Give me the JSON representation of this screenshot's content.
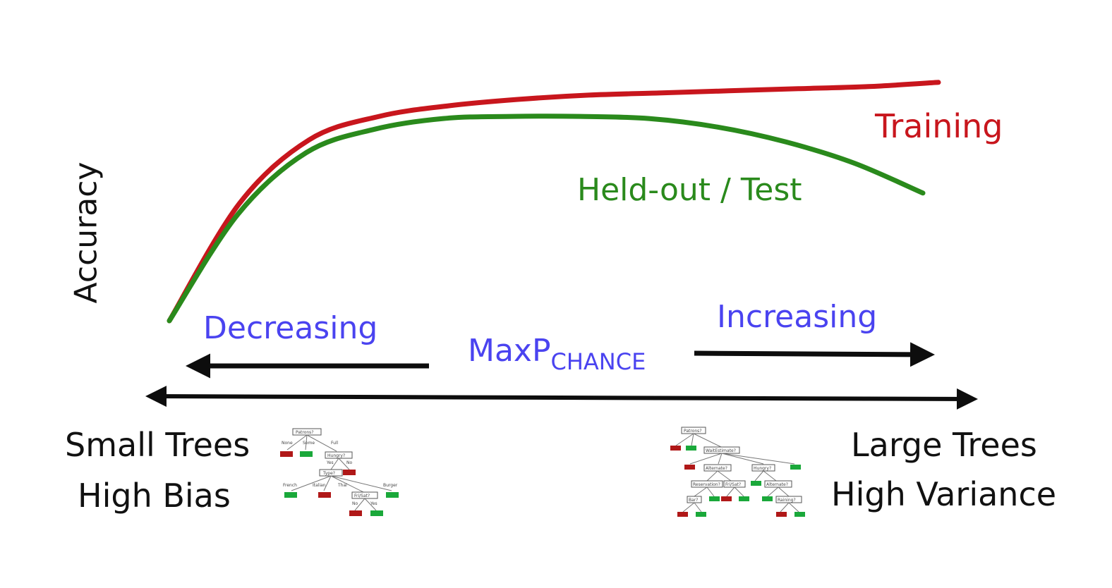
{
  "axis": {
    "y_label": "Accuracy"
  },
  "curves": {
    "training": {
      "label": "Training",
      "color": "#c8161d",
      "values": [
        0.0,
        0.55,
        0.85,
        0.96,
        1.01,
        1.04,
        1.06,
        1.07,
        1.08,
        1.09,
        1.1,
        1.12
      ]
    },
    "test": {
      "label": "Held-out / Test",
      "color": "#2a8a1c",
      "values": [
        0.0,
        0.5,
        0.79,
        0.9,
        0.95,
        0.96,
        0.96,
        0.95,
        0.91,
        0.84,
        0.74,
        0.6
      ]
    }
  },
  "arrows": {
    "decreasing": {
      "label": "Decreasing"
    },
    "increasing": {
      "label": "Increasing"
    },
    "maxp": {
      "main": "MaxP",
      "subscript": "CHANCE"
    }
  },
  "ends": {
    "left": {
      "line1": "Small Trees",
      "line2": "High Bias"
    },
    "right": {
      "line1": "Large Trees",
      "line2": "High Variance"
    }
  },
  "colors": {
    "label_blue": "#4a43f0",
    "arrow": "#0d0d0d"
  }
}
